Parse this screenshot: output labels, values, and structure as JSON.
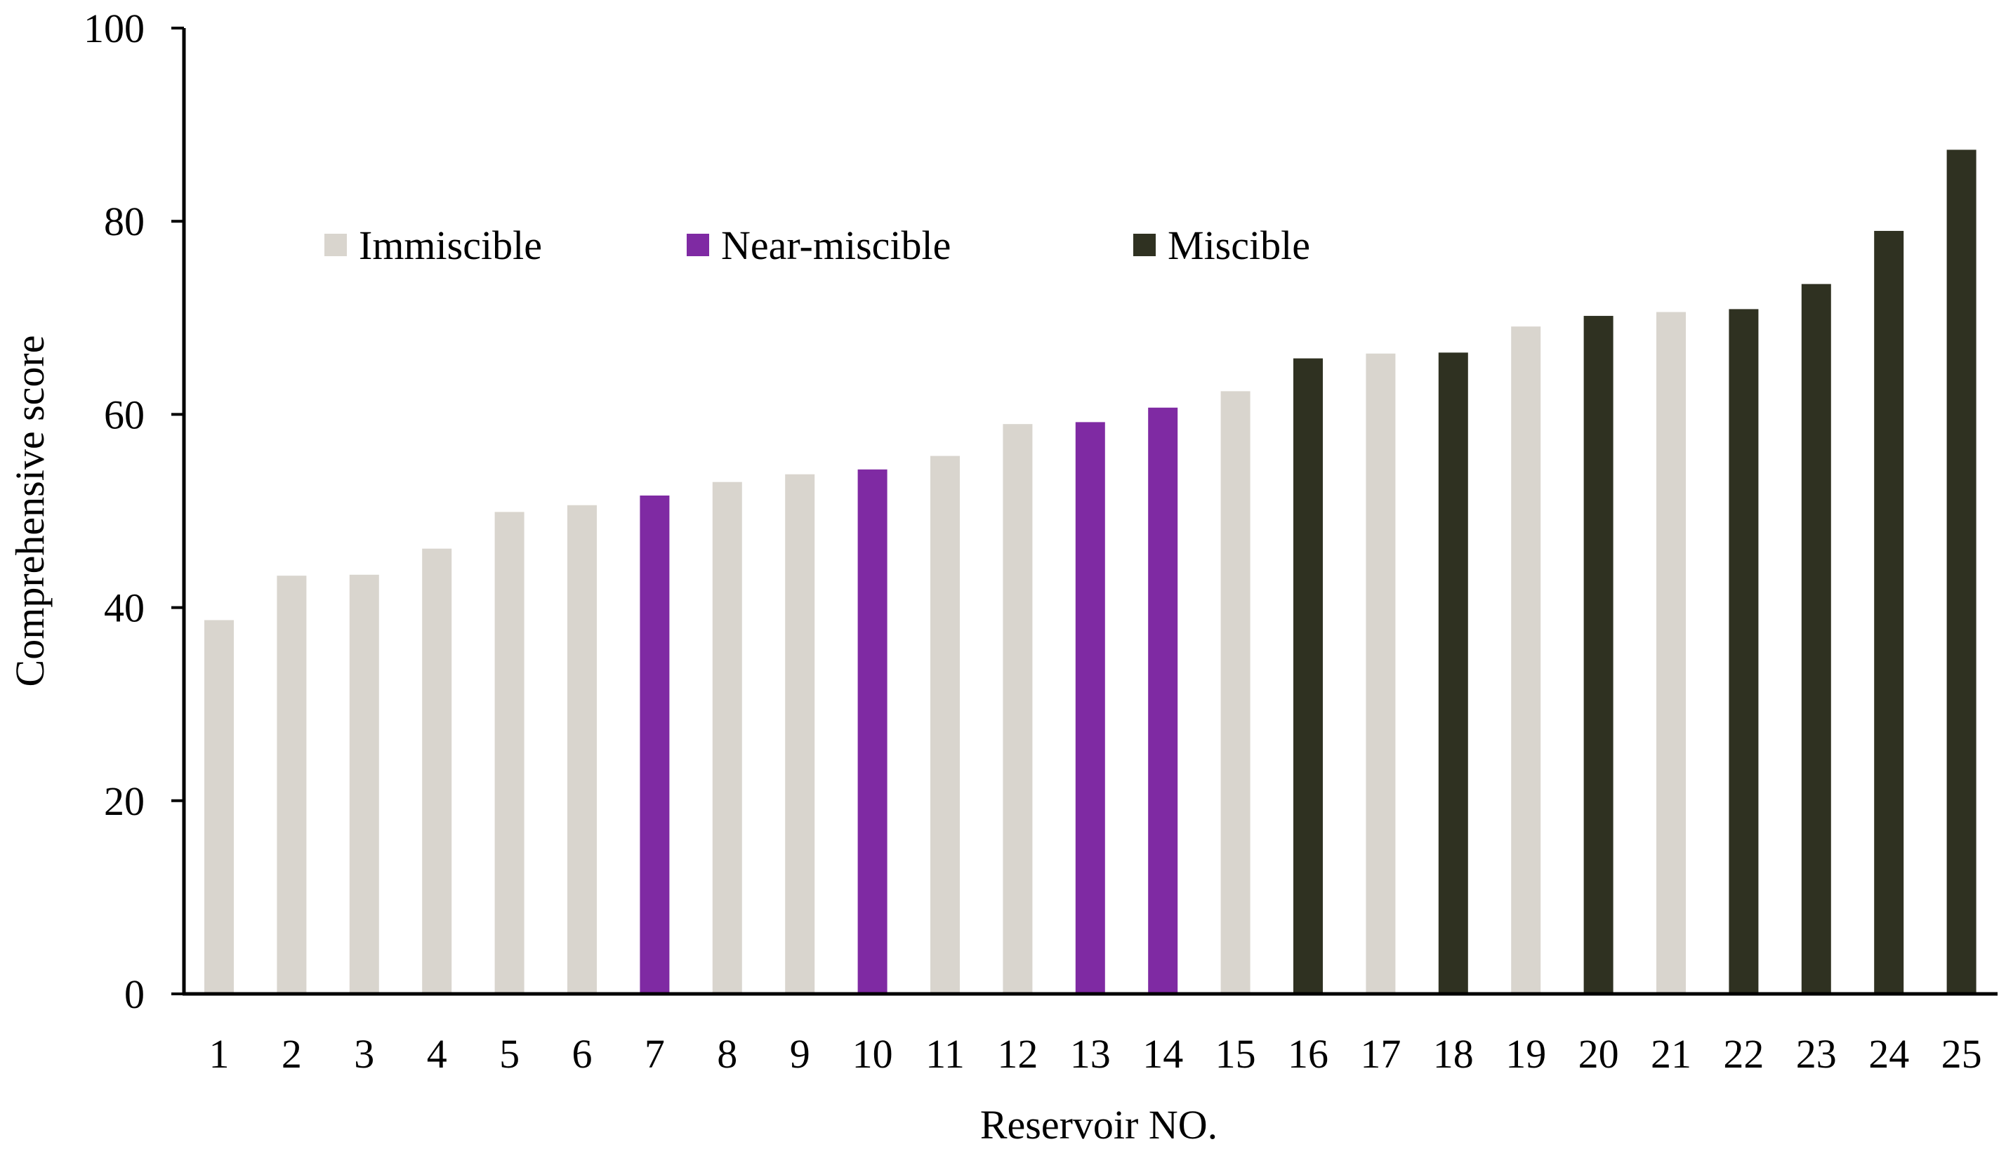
{
  "chart_data": {
    "type": "bar",
    "title": "",
    "xlabel": "Reservoir NO.",
    "ylabel": "Comprehensive score",
    "ylim": [
      0,
      100
    ],
    "yticks": [
      0,
      20,
      40,
      60,
      80,
      100
    ],
    "grid": false,
    "legend_position": "top-left",
    "categories": [
      "1",
      "2",
      "3",
      "4",
      "5",
      "6",
      "7",
      "8",
      "9",
      "10",
      "11",
      "12",
      "13",
      "14",
      "15",
      "16",
      "17",
      "18",
      "19",
      "20",
      "21",
      "22",
      "23",
      "24",
      "25"
    ],
    "values": [
      38.7,
      43.3,
      43.4,
      46.1,
      49.9,
      50.6,
      51.6,
      53.0,
      53.8,
      54.3,
      55.7,
      59.0,
      59.2,
      60.7,
      62.4,
      65.8,
      66.3,
      66.4,
      69.1,
      70.2,
      70.6,
      70.9,
      73.5,
      79.0,
      87.4
    ],
    "groups": [
      "Immiscible",
      "Immiscible",
      "Immiscible",
      "Immiscible",
      "Immiscible",
      "Immiscible",
      "Near-miscible",
      "Immiscible",
      "Immiscible",
      "Near-miscible",
      "Immiscible",
      "Immiscible",
      "Near-miscible",
      "Near-miscible",
      "Immiscible",
      "Miscible",
      "Immiscible",
      "Miscible",
      "Immiscible",
      "Miscible",
      "Immiscible",
      "Miscible",
      "Miscible",
      "Miscible",
      "Miscible"
    ],
    "legend": [
      {
        "name": "Immiscible",
        "color": "#d9d5ce"
      },
      {
        "name": "Near-miscible",
        "color": "#7f2aa3"
      },
      {
        "name": "Miscible",
        "color": "#2f3121"
      }
    ]
  }
}
